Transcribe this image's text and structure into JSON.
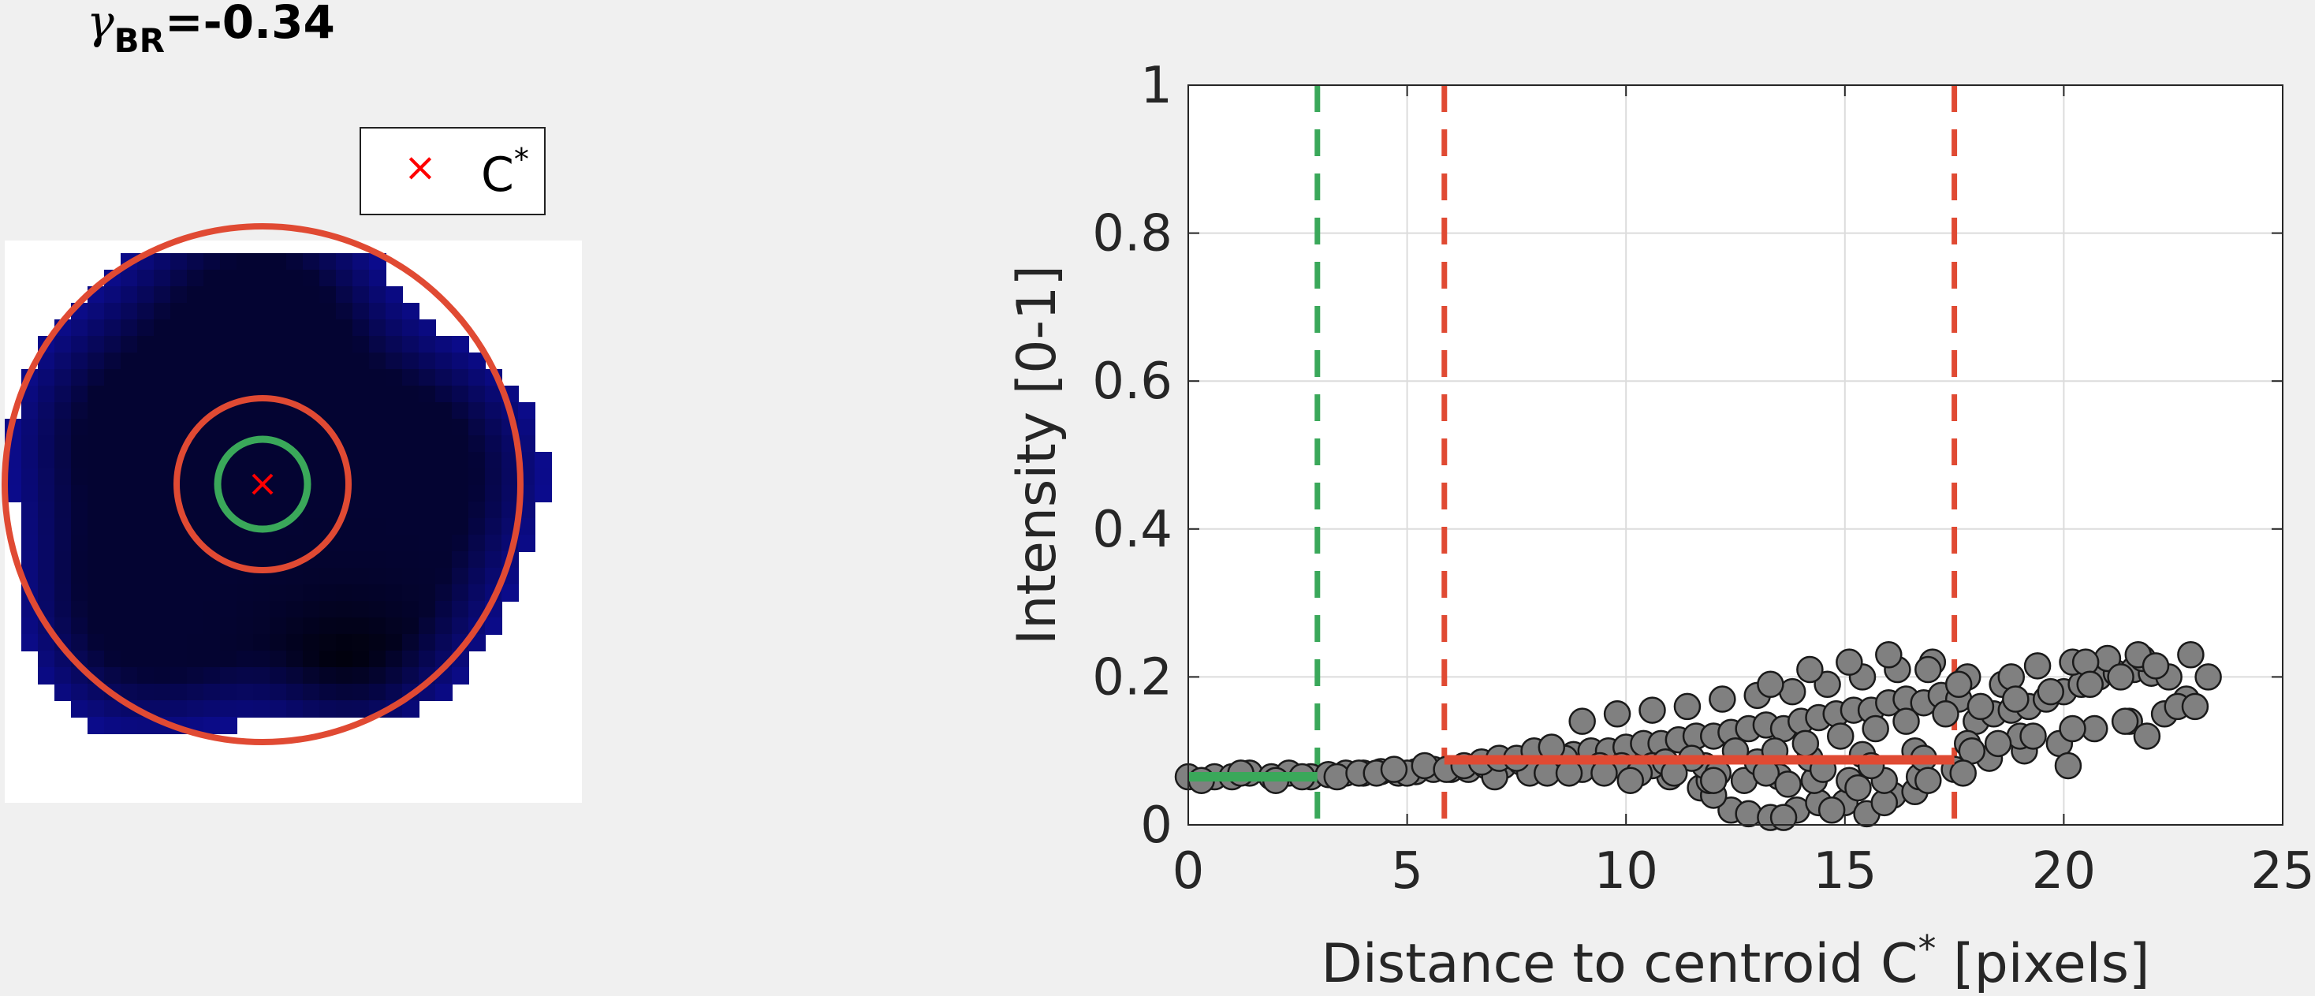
{
  "title": {
    "symbol": "γ",
    "subscript": "BR",
    "value": "=-0.34"
  },
  "legend": {
    "marker": "×",
    "label": "C",
    "label_sup": "*"
  },
  "colors": {
    "background": "#f0f0f0",
    "red_line": "#e04a33",
    "green_line": "#3aa85a",
    "points": "#808080",
    "centroid": "#ff0000",
    "image_blue": "#0a0a50"
  },
  "chart_data": {
    "type": "scatter",
    "title": "",
    "xlabel": "Distance to centroid C",
    "xlabel_sup": "*",
    "xlabel_unit": " [pixels]",
    "ylabel": "Intensity [0-1]",
    "xlim": [
      0,
      25
    ],
    "ylim": [
      0,
      1
    ],
    "xticks": [
      "0",
      "5",
      "10",
      "15",
      "20",
      "25"
    ],
    "yticks": [
      "0",
      "0.2",
      "0.4",
      "0.6",
      "0.8",
      "1"
    ],
    "grid": true,
    "vertical_lines": [
      {
        "x": 2.95,
        "color": "green",
        "style": "dashed"
      },
      {
        "x": 5.85,
        "color": "red",
        "style": "dashed"
      },
      {
        "x": 17.5,
        "color": "red",
        "style": "dashed"
      }
    ],
    "horizontal_segments": [
      {
        "x0": 0,
        "x1": 2.95,
        "y": 0.065,
        "color": "green"
      },
      {
        "x0": 5.85,
        "x1": 17.5,
        "y": 0.088,
        "color": "red"
      }
    ],
    "series": [
      {
        "values_x": [
          0.0,
          0.6,
          1.0,
          1.4,
          1.9,
          2.3,
          2.8,
          3.2,
          3.6,
          4.0,
          4.4,
          4.8,
          5.2,
          5.6,
          6.0,
          6.4,
          6.8,
          7.2,
          7.6,
          8.0,
          8.4,
          8.8,
          9.2,
          9.6,
          10.0,
          10.4,
          10.8,
          11.2,
          11.6,
          12.0,
          12.4,
          12.8,
          13.2,
          13.6,
          14.0,
          14.4,
          14.8,
          15.2,
          15.6,
          16.0,
          16.4,
          16.8,
          17.2,
          17.6,
          18.0,
          18.4,
          18.8,
          19.2,
          19.6,
          20.0,
          20.4,
          20.8,
          21.2,
          21.6,
          22.0,
          22.4,
          22.8,
          23.3,
          9.0,
          9.8,
          10.6,
          11.4,
          12.2,
          13.0,
          13.8,
          14.6,
          15.4,
          16.2,
          17.0,
          17.8,
          18.6,
          19.4,
          20.2,
          21.0,
          21.8,
          12.4,
          12.8,
          13.3,
          13.9,
          14.4,
          15.0,
          15.5,
          16.1,
          11.7,
          12.0,
          13.6,
          14.7,
          15.9,
          16.6,
          10.2,
          11.0,
          11.9,
          12.7,
          13.5,
          14.3,
          15.1,
          15.9,
          16.7,
          17.5,
          18.3,
          19.1,
          19.9,
          20.7,
          21.5,
          22.3,
          8.6,
          9.4,
          10.6,
          11.8,
          13.0,
          14.2,
          15.4,
          16.6,
          17.8,
          19.0,
          20.2,
          21.4,
          22.6,
          16.0,
          15.1,
          14.2,
          13.3,
          16.9,
          17.6,
          18.8,
          20.5,
          21.7,
          22.9,
          7.0,
          7.8,
          8.2,
          9.0,
          9.9,
          10.9,
          11.5,
          12.5,
          13.4,
          14.1,
          14.9,
          15.7,
          16.4,
          17.3,
          18.1,
          18.9,
          19.7,
          20.6,
          21.3,
          22.1,
          19.3,
          18.5,
          17.9,
          16.8,
          15.6,
          14.5,
          13.2,
          12.1,
          11.1,
          10.3,
          9.5,
          8.7,
          5.0,
          5.4,
          5.9,
          6.3,
          6.7,
          7.1,
          7.5,
          7.9,
          8.3,
          10.1,
          12.0,
          13.7,
          15.3,
          16.9,
          17.7,
          20.1,
          21.9,
          23.0,
          3.4,
          3.9,
          4.3,
          4.7,
          0.3,
          1.2,
          2.0,
          2.6
        ],
        "values_y": [
          0.065,
          0.065,
          0.065,
          0.07,
          0.065,
          0.07,
          0.065,
          0.068,
          0.07,
          0.07,
          0.072,
          0.07,
          0.072,
          0.075,
          0.075,
          0.075,
          0.08,
          0.08,
          0.085,
          0.09,
          0.09,
          0.095,
          0.1,
          0.1,
          0.105,
          0.11,
          0.11,
          0.115,
          0.12,
          0.12,
          0.125,
          0.13,
          0.135,
          0.13,
          0.14,
          0.145,
          0.15,
          0.155,
          0.155,
          0.165,
          0.17,
          0.165,
          0.175,
          0.17,
          0.14,
          0.15,
          0.155,
          0.16,
          0.17,
          0.18,
          0.19,
          0.2,
          0.205,
          0.21,
          0.205,
          0.2,
          0.17,
          0.2,
          0.14,
          0.15,
          0.155,
          0.16,
          0.17,
          0.175,
          0.18,
          0.19,
          0.2,
          0.21,
          0.22,
          0.2,
          0.19,
          0.215,
          0.22,
          0.225,
          0.225,
          0.02,
          0.015,
          0.01,
          0.02,
          0.03,
          0.03,
          0.015,
          0.04,
          0.05,
          0.04,
          0.01,
          0.02,
          0.03,
          0.045,
          0.07,
          0.065,
          0.06,
          0.06,
          0.065,
          0.06,
          0.06,
          0.06,
          0.065,
          0.075,
          0.09,
          0.1,
          0.11,
          0.13,
          0.14,
          0.15,
          0.09,
          0.08,
          0.08,
          0.08,
          0.085,
          0.09,
          0.095,
          0.1,
          0.11,
          0.12,
          0.13,
          0.14,
          0.16,
          0.23,
          0.22,
          0.21,
          0.19,
          0.21,
          0.19,
          0.2,
          0.22,
          0.23,
          0.23,
          0.065,
          0.07,
          0.07,
          0.075,
          0.08,
          0.085,
          0.09,
          0.1,
          0.1,
          0.11,
          0.12,
          0.13,
          0.14,
          0.15,
          0.16,
          0.17,
          0.18,
          0.19,
          0.2,
          0.215,
          0.12,
          0.11,
          0.1,
          0.09,
          0.08,
          0.075,
          0.07,
          0.07,
          0.07,
          0.07,
          0.07,
          0.07,
          0.07,
          0.08,
          0.075,
          0.08,
          0.085,
          0.09,
          0.09,
          0.1,
          0.105,
          0.06,
          0.06,
          0.055,
          0.05,
          0.06,
          0.07,
          0.08,
          0.12,
          0.16,
          0.065,
          0.07,
          0.07,
          0.075,
          0.06,
          0.07,
          0.06,
          0.065
        ]
      }
    ]
  }
}
